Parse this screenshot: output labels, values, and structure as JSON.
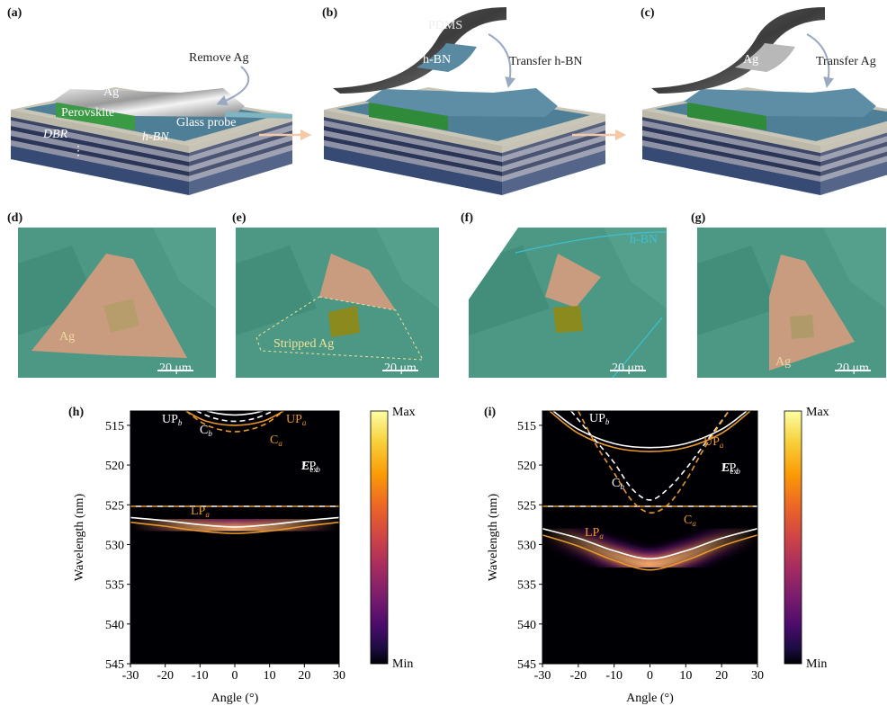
{
  "schematic": [
    {
      "label": "(a)",
      "annotations": [
        "Remove Ag",
        "Ag",
        "Perovskite",
        "Glass probe",
        "DBR",
        "h-BN",
        "⋮"
      ]
    },
    {
      "label": "(b)",
      "annotations": [
        "PDMS",
        "h-BN",
        "Transfer h-BN"
      ]
    },
    {
      "label": "(c)",
      "annotations": [
        "Ag",
        "Transfer Ag"
      ]
    }
  ],
  "micrographs": [
    {
      "label": "(d)",
      "annotations": [
        "Ag"
      ],
      "scale_bar": "20 μm"
    },
    {
      "label": "(e)",
      "annotations": [
        "Stripped Ag"
      ],
      "scale_bar": "20 μm"
    },
    {
      "label": "(f)",
      "annotations": [
        "h-BN"
      ],
      "scale_bar": "20 μm"
    },
    {
      "label": "(g)",
      "annotations": [
        "Ag"
      ],
      "scale_bar": "20 μm"
    }
  ],
  "plots": [
    {
      "label": "(h)",
      "xlabel": "Angle (°)",
      "ylabel": "Wavelength (nm)",
      "xlim": [
        -30,
        30
      ],
      "ylim": [
        545,
        513.2
      ],
      "xticks": [
        -30,
        -20,
        -10,
        0,
        10,
        20,
        30
      ],
      "yticks": [
        515,
        520,
        525,
        530,
        535,
        540,
        545
      ],
      "colorbar": {
        "max": "Max",
        "min": "Min"
      },
      "exciton": {
        "value": 525.2,
        "name": {
          "main": "E",
          "sub": "ex"
        }
      },
      "curves": [
        {
          "name": {
            "main": "UP",
            "sub": "b"
          },
          "color": "#ffffff",
          "dash": false,
          "x": [
            -8,
            -5,
            0,
            5,
            8
          ],
          "values": [
            513.2,
            513.5,
            513.7,
            513.5,
            513.2
          ]
        },
        {
          "name": {
            "main": "C",
            "sub": "b"
          },
          "color": "#ffffff",
          "dash": true,
          "x": [
            -11,
            -6,
            0,
            6,
            11
          ],
          "values": [
            513.2,
            514.1,
            514.5,
            514.1,
            513.2
          ]
        },
        {
          "name": {
            "main": "UP",
            "sub": "a"
          },
          "color": "#e8962e",
          "dash": false,
          "x": [
            -14,
            -8,
            0,
            8,
            14
          ],
          "values": [
            513.2,
            514.5,
            515.0,
            514.5,
            513.2
          ]
        },
        {
          "name": {
            "main": "C",
            "sub": "a"
          },
          "color": "#e8962e",
          "dash": true,
          "x": [
            -14,
            -8,
            0,
            8,
            14
          ],
          "values": [
            513.2,
            515.0,
            515.8,
            515.0,
            513.2
          ]
        },
        {
          "name": {
            "main": "LP",
            "sub": "b"
          },
          "color": "#ffffff",
          "dash": false,
          "x": [
            -30,
            -20,
            -10,
            0,
            10,
            20,
            30
          ],
          "values": [
            526.6,
            527.0,
            527.5,
            527.8,
            527.5,
            527.0,
            526.6
          ]
        },
        {
          "name": {
            "main": "LP",
            "sub": "a"
          },
          "color": "#e8962e",
          "dash": false,
          "x": [
            -30,
            -20,
            -10,
            0,
            10,
            20,
            30
          ],
          "values": [
            527.2,
            527.7,
            528.3,
            528.6,
            528.3,
            527.7,
            527.2
          ]
        }
      ]
    },
    {
      "label": "(i)",
      "xlabel": "Angle (°)",
      "ylabel": "Wavelength (nm)",
      "xlim": [
        -30,
        30
      ],
      "ylim": [
        545,
        513.2
      ],
      "xticks": [
        -30,
        -20,
        -10,
        0,
        10,
        20,
        30
      ],
      "yticks": [
        515,
        520,
        525,
        530,
        535,
        540,
        545
      ],
      "colorbar": {
        "max": "Max",
        "min": "Min"
      },
      "exciton": {
        "value": 525.2,
        "name": {
          "main": "E",
          "sub": "ex"
        }
      },
      "curves": [
        {
          "name": {
            "main": "UP",
            "sub": "b"
          },
          "color": "#ffffff",
          "dash": false,
          "x": [
            -27,
            -20,
            -10,
            0,
            10,
            20,
            27
          ],
          "values": [
            513.2,
            515.5,
            517.3,
            517.8,
            517.3,
            515.5,
            513.2
          ]
        },
        {
          "name": {
            "main": "UP",
            "sub": "a"
          },
          "color": "#e8962e",
          "dash": false,
          "x": [
            -28,
            -20,
            -10,
            0,
            10,
            20,
            28
          ],
          "values": [
            513.2,
            516.0,
            517.8,
            518.3,
            517.8,
            516.0,
            513.2
          ]
        },
        {
          "name": {
            "main": "C",
            "sub": "b"
          },
          "color": "#ffffff",
          "dash": true,
          "x": [
            -22,
            -15,
            -10,
            -5,
            0,
            5,
            10,
            15,
            22
          ],
          "values": [
            513.2,
            517.0,
            519.7,
            523.0,
            524.4,
            523.0,
            520.5,
            517.5,
            513.2
          ]
        },
        {
          "name": {
            "main": "C",
            "sub": "a"
          },
          "color": "#e8962e",
          "dash": true,
          "x": [
            -20,
            -15,
            -10,
            -5,
            0,
            5,
            10,
            15,
            22
          ],
          "values": [
            513.2,
            517.5,
            521.0,
            524.5,
            526.0,
            525.0,
            522.0,
            518.0,
            513.2
          ]
        },
        {
          "name": {
            "main": "LP",
            "sub": "b"
          },
          "color": "#ffffff",
          "dash": false,
          "x": [
            -30,
            -20,
            -10,
            0,
            10,
            20,
            30
          ],
          "values": [
            528.0,
            529.2,
            530.8,
            531.8,
            530.8,
            529.2,
            528.0
          ]
        },
        {
          "name": {
            "main": "LP",
            "sub": "a"
          },
          "color": "#e8962e",
          "dash": false,
          "x": [
            -30,
            -20,
            -10,
            0,
            10,
            20,
            30
          ],
          "values": [
            528.8,
            530.2,
            532.0,
            533.2,
            532.0,
            530.2,
            528.8
          ]
        }
      ]
    }
  ]
}
